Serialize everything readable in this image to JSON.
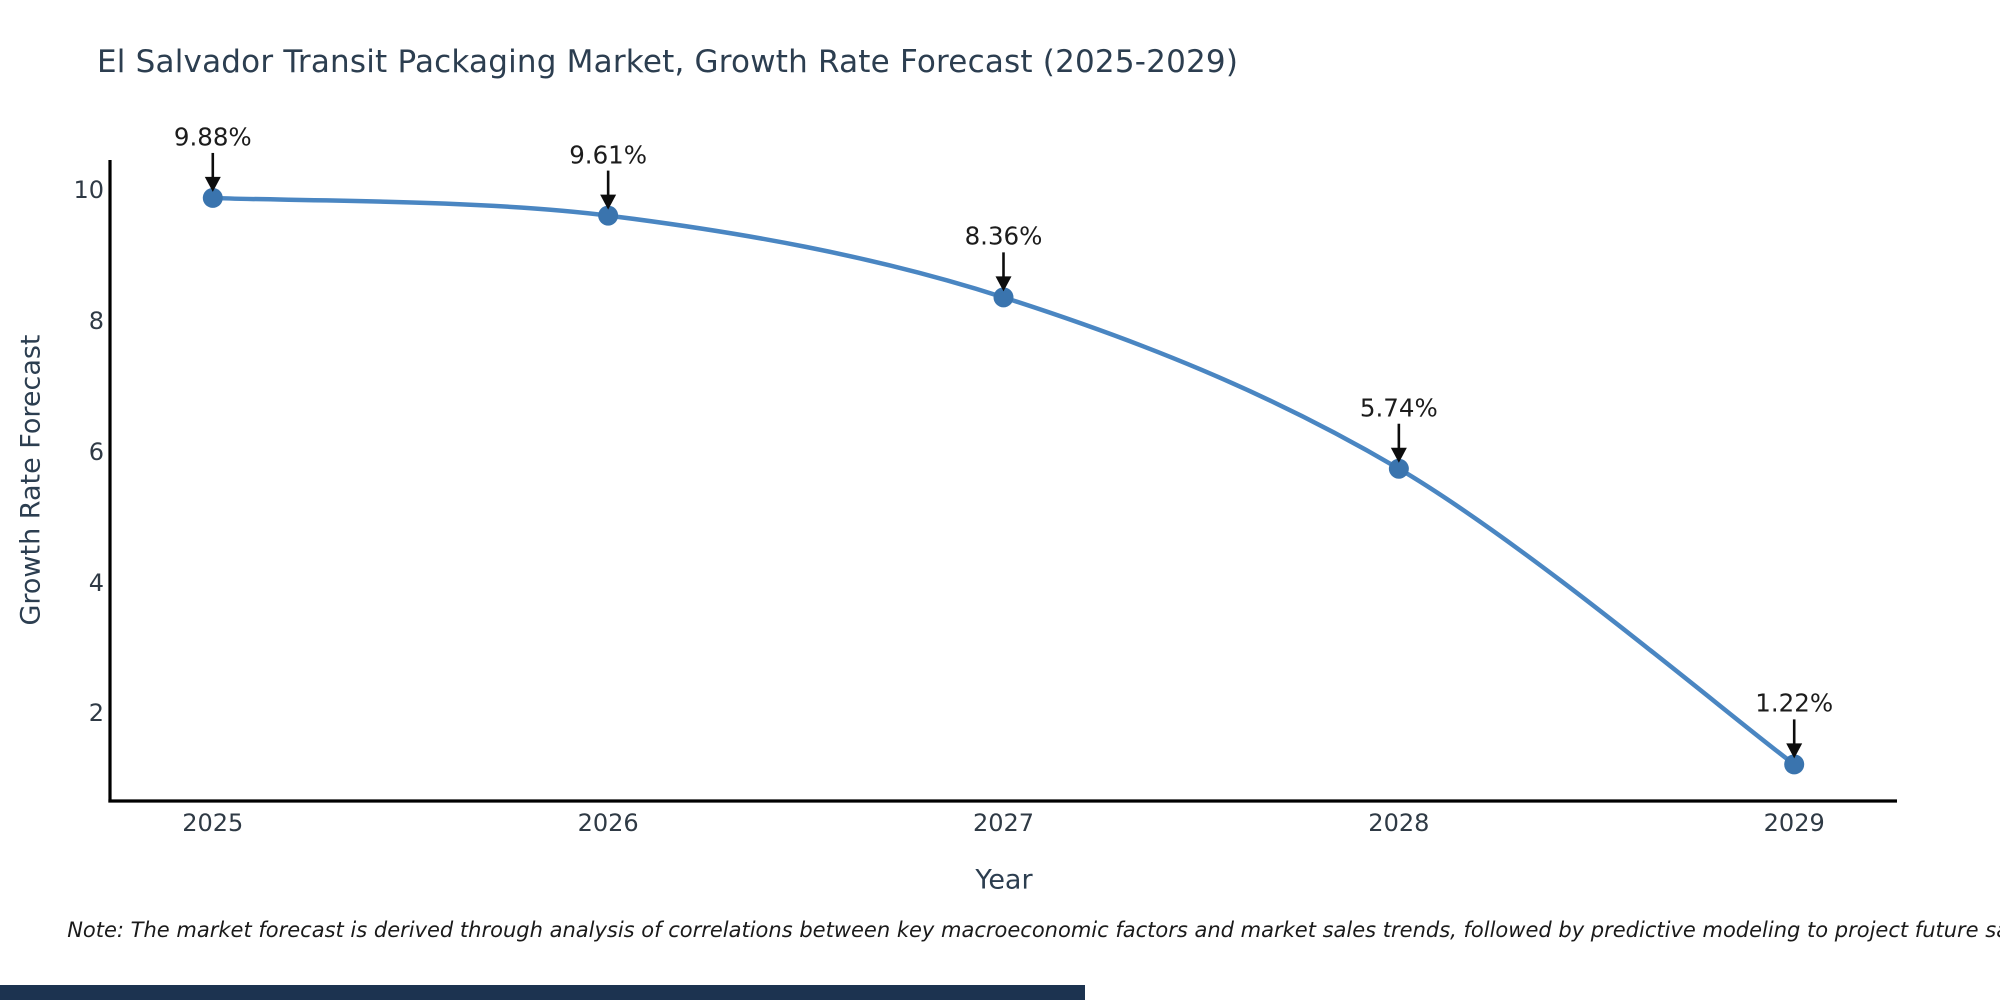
{
  "note": "Note: The market forecast is derived through analysis of correlations between key macroeconomic factors and market sales trends, followed by predictive modeling to project future sales",
  "chart_data": {
    "type": "line",
    "title": "El Salvador Transit Packaging Market, Growth Rate Forecast (2025-2029)",
    "xlabel": "Year",
    "ylabel": "Growth Rate Forecast",
    "x": [
      2025,
      2026,
      2027,
      2028,
      2029
    ],
    "values": [
      9.88,
      9.61,
      8.36,
      5.74,
      1.22
    ],
    "point_labels": [
      "9.88%",
      "9.61%",
      "8.36%",
      "5.74%",
      "1.22%"
    ],
    "xticks": [
      2025,
      2026,
      2027,
      2028,
      2029
    ],
    "yticks": [
      2,
      4,
      6,
      8,
      10
    ],
    "xlim": [
      2024.74,
      2029.26
    ],
    "ylim": [
      0.66,
      10.46
    ],
    "grid": false,
    "legend": false,
    "line_shape": "spline",
    "colors": {
      "line": "#4a86c2",
      "marker": "#3a74ae",
      "spine": "#000000",
      "arrow": "#0d0d0d",
      "title_text": "#2c3e50",
      "tick_text": "#2f3a45",
      "annotation_text": "#1c1c1c",
      "bottom_bar": "#1c3350"
    }
  }
}
